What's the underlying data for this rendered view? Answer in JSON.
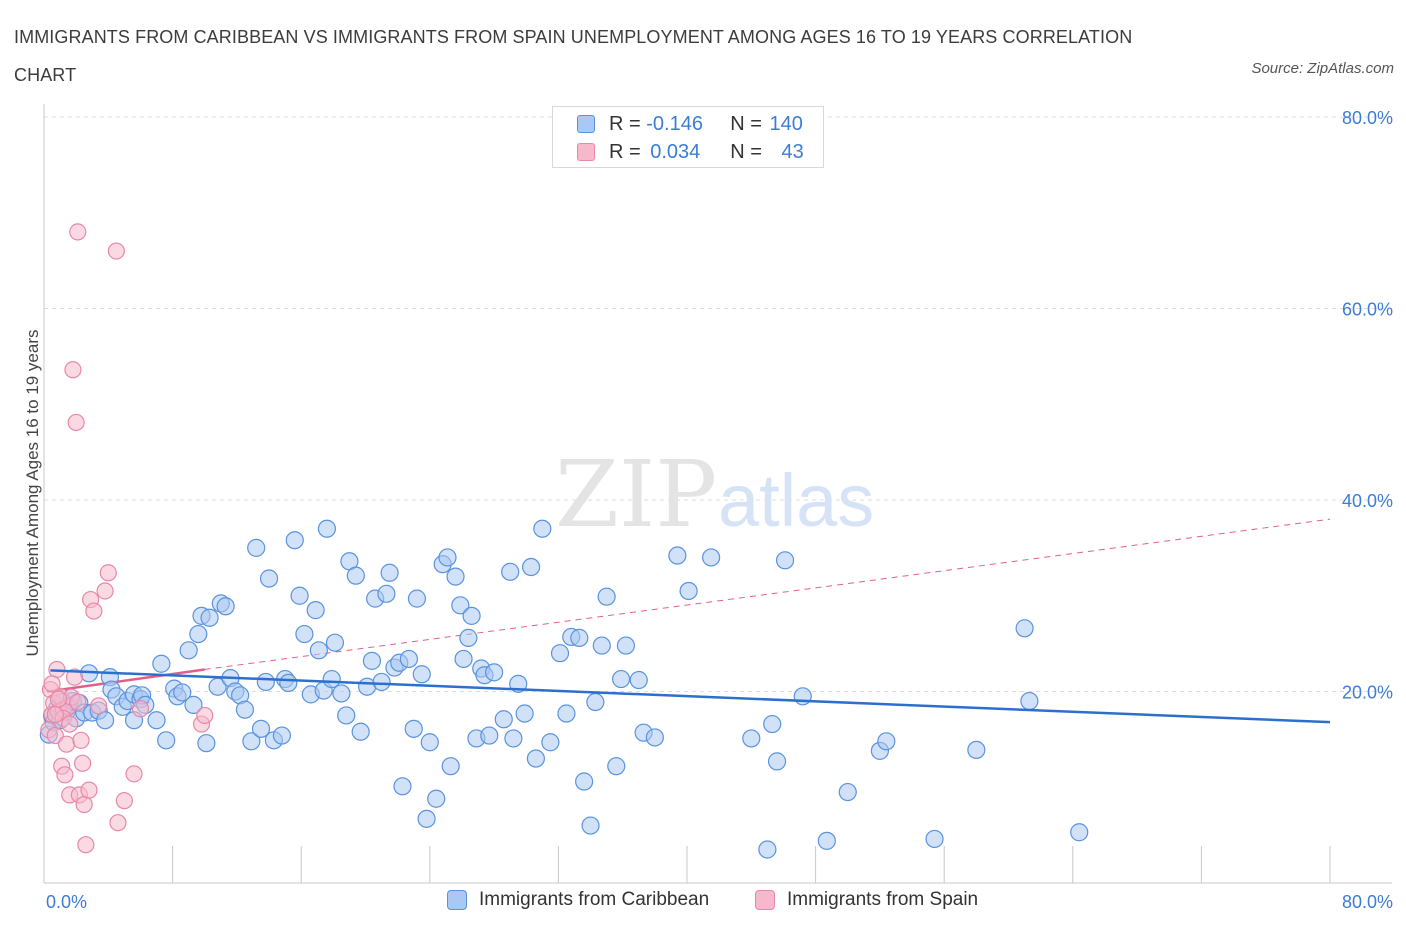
{
  "title": "IMMIGRANTS FROM CARIBBEAN VS IMMIGRANTS FROM SPAIN UNEMPLOYMENT AMONG AGES 16 TO 19 YEARS CORRELATION CHART",
  "source": "Source: ZipAtlas.com",
  "watermark": {
    "zip": "ZIP",
    "atlas": "atlas"
  },
  "legend": {
    "rows": [
      {
        "r_label": "R = ",
        "r_value": "-0.146",
        "n_label": "N = ",
        "n_value": "140"
      },
      {
        "r_label": "R = ",
        "r_value": "0.034",
        "n_label": "N = ",
        "n_value": "43"
      }
    ]
  },
  "bottom_legend": [
    "Immigrants from Caribbean",
    "Immigrants from Spain"
  ],
  "colors": {
    "caribbean_fill": "#a9c8f3",
    "caribbean_stroke": "#5a93de",
    "caribbean_line": "#2d6fcf",
    "spain_fill": "#f6b9cc",
    "spain_stroke": "#e888a8",
    "spain_line": "#e0608a",
    "tick_text": "#3b7dd8",
    "grid": "#dcdcdc"
  },
  "chart_data": {
    "type": "scatter",
    "title": "IMMIGRANTS FROM CARIBBEAN VS IMMIGRANTS FROM SPAIN UNEMPLOYMENT AMONG AGES 16 TO 19 YEARS CORRELATION CHART",
    "xlabel": "",
    "ylabel": "Unemployment Among Ages 16 to 19 years",
    "xlim": [
      0,
      80
    ],
    "ylim": [
      0,
      80
    ],
    "x_tick_labels": [
      "0.0%",
      "80.0%"
    ],
    "y_ticks": [
      20,
      40,
      60,
      80
    ],
    "y_tick_labels": [
      "20.0%",
      "40.0%",
      "60.0%",
      "80.0%"
    ],
    "grid": true,
    "legend_position": "top-center",
    "series": [
      {
        "name": "Immigrants from Caribbean",
        "R": -0.146,
        "N": 140,
        "trend": {
          "x": [
            0.4,
            80.0
          ],
          "y": [
            22.2,
            16.8
          ]
        },
        "points": [
          [
            0.3,
            15.5
          ],
          [
            0.5,
            17.5
          ],
          [
            0.6,
            16.8
          ],
          [
            0.8,
            18.2
          ],
          [
            1.0,
            17.0
          ],
          [
            1.2,
            18.9
          ],
          [
            1.4,
            17.9
          ],
          [
            1.6,
            18.5
          ],
          [
            1.8,
            19.0
          ],
          [
            2.0,
            17.2
          ],
          [
            2.2,
            18.8
          ],
          [
            2.5,
            17.8
          ],
          [
            2.8,
            21.9
          ],
          [
            3.0,
            17.8
          ],
          [
            3.4,
            18.0
          ],
          [
            3.8,
            17.0
          ],
          [
            4.1,
            21.5
          ],
          [
            4.2,
            20.2
          ],
          [
            4.5,
            19.5
          ],
          [
            4.9,
            18.4
          ],
          [
            5.2,
            19.0
          ],
          [
            5.6,
            17.0
          ],
          [
            5.6,
            19.7
          ],
          [
            6.0,
            19.2
          ],
          [
            6.1,
            19.6
          ],
          [
            6.3,
            18.6
          ],
          [
            7.0,
            17.0
          ],
          [
            7.3,
            22.9
          ],
          [
            7.6,
            14.9
          ],
          [
            8.1,
            20.3
          ],
          [
            8.3,
            19.5
          ],
          [
            8.6,
            19.9
          ],
          [
            9.0,
            24.3
          ],
          [
            9.3,
            18.6
          ],
          [
            9.6,
            26.0
          ],
          [
            9.8,
            27.9
          ],
          [
            10.1,
            14.6
          ],
          [
            10.3,
            27.7
          ],
          [
            10.8,
            20.5
          ],
          [
            11.0,
            29.2
          ],
          [
            11.3,
            28.9
          ],
          [
            11.6,
            21.4
          ],
          [
            11.9,
            20.0
          ],
          [
            12.2,
            19.6
          ],
          [
            12.5,
            18.1
          ],
          [
            12.9,
            14.8
          ],
          [
            13.2,
            35.0
          ],
          [
            13.5,
            16.1
          ],
          [
            13.8,
            21.0
          ],
          [
            14.0,
            31.8
          ],
          [
            14.3,
            14.9
          ],
          [
            14.8,
            15.4
          ],
          [
            15.0,
            21.3
          ],
          [
            15.2,
            20.9
          ],
          [
            15.6,
            35.8
          ],
          [
            15.9,
            30.0
          ],
          [
            16.2,
            26.0
          ],
          [
            16.6,
            19.7
          ],
          [
            16.9,
            28.5
          ],
          [
            17.1,
            24.3
          ],
          [
            17.4,
            20.1
          ],
          [
            17.6,
            37.0
          ],
          [
            17.9,
            21.3
          ],
          [
            18.1,
            25.1
          ],
          [
            18.5,
            19.8
          ],
          [
            18.8,
            17.5
          ],
          [
            19.0,
            33.6
          ],
          [
            19.4,
            32.1
          ],
          [
            19.7,
            15.8
          ],
          [
            20.1,
            20.5
          ],
          [
            20.4,
            23.2
          ],
          [
            20.6,
            29.7
          ],
          [
            21.0,
            21.0
          ],
          [
            21.3,
            30.2
          ],
          [
            21.5,
            32.4
          ],
          [
            21.8,
            22.5
          ],
          [
            22.1,
            23.0
          ],
          [
            22.3,
            10.1
          ],
          [
            22.7,
            23.4
          ],
          [
            23.0,
            16.1
          ],
          [
            23.2,
            29.7
          ],
          [
            23.5,
            21.8
          ],
          [
            23.8,
            6.7
          ],
          [
            24.0,
            14.7
          ],
          [
            24.4,
            8.8
          ],
          [
            24.8,
            33.3
          ],
          [
            25.1,
            34.0
          ],
          [
            25.3,
            12.2
          ],
          [
            25.6,
            32.0
          ],
          [
            25.9,
            29.0
          ],
          [
            26.1,
            23.4
          ],
          [
            26.4,
            25.6
          ],
          [
            26.6,
            27.9
          ],
          [
            26.9,
            15.1
          ],
          [
            27.2,
            22.4
          ],
          [
            27.4,
            21.7
          ],
          [
            27.7,
            15.4
          ],
          [
            28.0,
            22.0
          ],
          [
            28.6,
            17.1
          ],
          [
            29.0,
            32.5
          ],
          [
            29.2,
            15.1
          ],
          [
            29.5,
            20.8
          ],
          [
            29.9,
            17.7
          ],
          [
            30.3,
            33.0
          ],
          [
            30.6,
            13.0
          ],
          [
            31.0,
            37.0
          ],
          [
            31.5,
            14.7
          ],
          [
            32.1,
            24.0
          ],
          [
            32.5,
            17.7
          ],
          [
            32.8,
            25.7
          ],
          [
            33.3,
            25.6
          ],
          [
            33.6,
            10.6
          ],
          [
            34.0,
            6.0
          ],
          [
            34.3,
            18.9
          ],
          [
            34.7,
            24.8
          ],
          [
            35.0,
            29.9
          ],
          [
            35.6,
            12.2
          ],
          [
            35.9,
            21.3
          ],
          [
            36.2,
            24.8
          ],
          [
            37.0,
            21.2
          ],
          [
            37.3,
            15.7
          ],
          [
            38.0,
            15.2
          ],
          [
            39.4,
            34.2
          ],
          [
            40.1,
            30.5
          ],
          [
            41.5,
            34.0
          ],
          [
            44.0,
            15.1
          ],
          [
            45.0,
            3.5
          ],
          [
            45.3,
            16.6
          ],
          [
            45.6,
            12.7
          ],
          [
            46.1,
            33.7
          ],
          [
            47.2,
            19.5
          ],
          [
            48.7,
            4.4
          ],
          [
            50.0,
            9.5
          ],
          [
            52.0,
            13.8
          ],
          [
            52.4,
            14.8
          ],
          [
            55.4,
            4.6
          ],
          [
            58.0,
            13.9
          ],
          [
            61.0,
            26.6
          ],
          [
            61.3,
            19.0
          ],
          [
            64.4,
            5.3
          ]
        ]
      },
      {
        "name": "Immigrants from Spain",
        "R": 0.034,
        "N": 43,
        "trend_solid": {
          "x": [
            0.2,
            10.0
          ],
          "y": [
            20.0,
            22.3
          ]
        },
        "trend_dashed": {
          "x": [
            10.0,
            80.0
          ],
          "y": [
            22.3,
            38.0
          ]
        },
        "points": [
          [
            0.3,
            16.0
          ],
          [
            0.4,
            20.2
          ],
          [
            0.5,
            17.6
          ],
          [
            0.6,
            18.8
          ],
          [
            0.7,
            15.4
          ],
          [
            0.8,
            22.3
          ],
          [
            0.9,
            17.9
          ],
          [
            1.0,
            19.5
          ],
          [
            1.1,
            12.2
          ],
          [
            1.2,
            18.1
          ],
          [
            1.3,
            11.3
          ],
          [
            1.4,
            14.5
          ],
          [
            1.5,
            18.4
          ],
          [
            1.6,
            9.2
          ],
          [
            1.7,
            19.4
          ],
          [
            1.8,
            53.6
          ],
          [
            1.9,
            21.5
          ],
          [
            2.0,
            48.1
          ],
          [
            2.1,
            68.0
          ],
          [
            2.2,
            9.2
          ],
          [
            2.3,
            14.9
          ],
          [
            2.4,
            12.5
          ],
          [
            2.5,
            8.2
          ],
          [
            2.6,
            4.0
          ],
          [
            2.8,
            9.7
          ],
          [
            2.9,
            29.6
          ],
          [
            3.1,
            28.4
          ],
          [
            3.4,
            18.5
          ],
          [
            3.8,
            30.5
          ],
          [
            4.0,
            32.4
          ],
          [
            4.5,
            66.0
          ],
          [
            4.6,
            6.3
          ],
          [
            5.0,
            8.6
          ],
          [
            5.6,
            11.4
          ],
          [
            6.0,
            18.2
          ],
          [
            9.8,
            16.6
          ],
          [
            10.0,
            17.5
          ],
          [
            0.9,
            19.2
          ],
          [
            1.2,
            17.2
          ],
          [
            1.6,
            16.6
          ],
          [
            2.1,
            18.9
          ],
          [
            0.5,
            20.8
          ],
          [
            0.7,
            17.6
          ]
        ]
      }
    ]
  }
}
